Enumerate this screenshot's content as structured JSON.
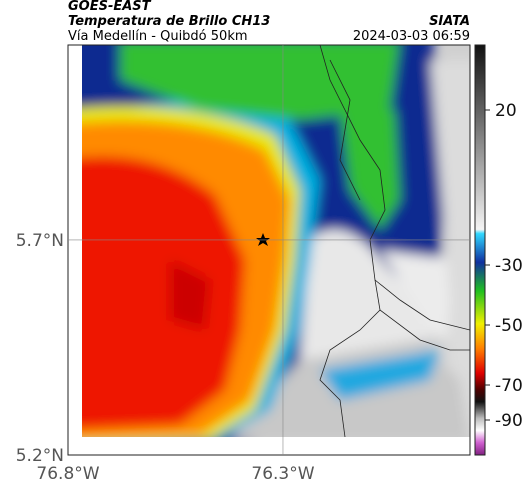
{
  "header": {
    "source": "GOES-EAST",
    "title": "Temperatura de Brillo CH13",
    "org": "SIATA",
    "subtitle": "Vía Medellín - Quibdó 50km",
    "timestamp": "2024-03-03 06:59"
  },
  "map": {
    "xlim": [
      -76.8,
      -75.865
    ],
    "ylim": [
      5.2,
      6.153
    ],
    "xticks": [
      {
        "value": -76.8,
        "label": "76.8°W"
      },
      {
        "value": -76.3,
        "label": "76.3°W"
      }
    ],
    "yticks": [
      {
        "value": 5.7,
        "label": "5.7°N"
      },
      {
        "value": 5.2,
        "label": "5.2°N"
      }
    ],
    "grid": true
  },
  "colorbar": {
    "ticks": [
      20,
      -30,
      -50,
      -70,
      -90
    ]
  }
}
